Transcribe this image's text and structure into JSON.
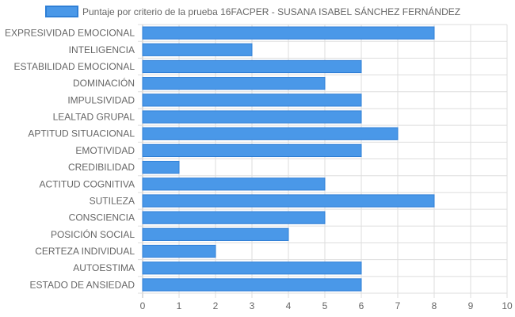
{
  "chart_data": {
    "type": "bar",
    "orientation": "horizontal",
    "title": "",
    "legend": {
      "position": "top",
      "entries": [
        "Puntaje por criterio de la prueba 16FACPER - SUSANA ISABEL SÁNCHEZ FERNÁNDEZ"
      ]
    },
    "categories": [
      "EXPRESIVIDAD EMOCIONAL",
      "INTELIGENCIA",
      "ESTABILIDAD EMOCIONAL",
      "DOMINACIÓN",
      "IMPULSIVIDAD",
      "LEALTAD GRUPAL",
      "APTITUD SITUACIONAL",
      "EMOTIVIDAD",
      "CREDIBILIDAD",
      "ACTITUD COGNITIVA",
      "SUTILEZA",
      "CONSCIENCIA",
      "POSICIÓN SOCIAL",
      "CERTEZA INDIVIDUAL",
      "AUTOESTIMA",
      "ESTADO DE ANSIEDAD"
    ],
    "series": [
      {
        "name": "Puntaje por criterio de la prueba 16FACPER - SUSANA ISABEL SÁNCHEZ FERNÁNDEZ",
        "values": [
          8,
          3,
          6,
          5,
          6,
          6,
          7,
          6,
          1,
          5,
          8,
          5,
          4,
          2,
          6,
          6
        ],
        "color": "#4a98e8",
        "border_color": "#2f7fd6"
      }
    ],
    "x_ticks": [
      "0",
      "1",
      "2",
      "3",
      "4",
      "5",
      "6",
      "7",
      "8",
      "9",
      "10"
    ],
    "xlim": [
      0,
      10
    ],
    "grid": true,
    "grid_color": "#dddddd"
  }
}
